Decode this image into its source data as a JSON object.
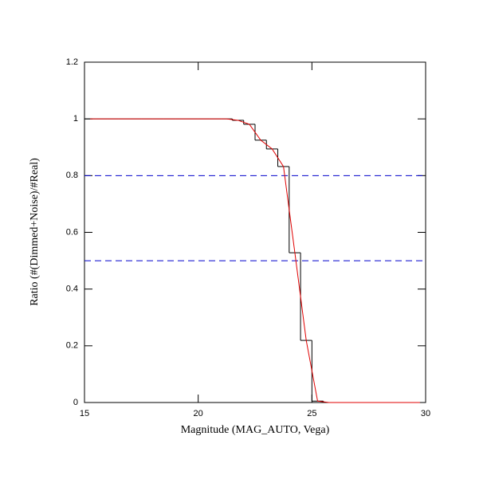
{
  "chart_data": {
    "type": "histogram",
    "xlabel": "Magnitude (MAG_AUTO, Vega)",
    "ylabel": "Ratio (#(Dimmed+Noise)/#Real)",
    "bins": [
      15,
      15.5,
      16,
      16.5,
      17,
      17.5,
      18,
      18.5,
      19,
      19.5,
      20,
      20.5,
      21,
      21.5,
      22,
      22.5,
      23,
      23.5,
      24,
      24.5,
      25,
      25.5,
      26,
      26.5,
      27,
      27.5,
      28,
      28.5,
      29,
      29.5,
      30
    ],
    "values": [
      1,
      1,
      1,
      1,
      1,
      1,
      1,
      1,
      1,
      1,
      1,
      1,
      1,
      0.995,
      0.981,
      0.925,
      0.894,
      0.832,
      0.528,
      0.219,
      0.005,
      0,
      0,
      0,
      0,
      0,
      0,
      0,
      0,
      0
    ],
    "color": "#000000",
    "line": {
      "color": "#e00000",
      "x": [
        15.25,
        15.75,
        16.25,
        16.75,
        17.25,
        17.75,
        18.25,
        18.75,
        19.25,
        19.75,
        20.25,
        20.75,
        21.25,
        21.75,
        22.25,
        22.75,
        23.25,
        23.75,
        24.25,
        24.75,
        25.25,
        25.75,
        26.25,
        26.75,
        27.25,
        27.75,
        28.25,
        28.75,
        29.25,
        29.75
      ],
      "values": [
        1,
        1,
        1,
        1,
        1,
        1,
        1,
        1,
        1,
        1,
        1,
        1,
        1,
        0.995,
        0.981,
        0.925,
        0.894,
        0.832,
        0.528,
        0.219,
        0.005,
        0,
        0,
        0,
        0,
        0,
        0,
        0,
        0,
        0
      ]
    },
    "hlines": [
      0.8,
      0.5
    ],
    "hline_color": "#0000cc",
    "xlim": [
      15,
      30
    ],
    "xticks": [
      15,
      20,
      25,
      30
    ],
    "ylim": [
      0,
      1.2
    ],
    "yticks": [
      0,
      0.2,
      0.4,
      0.6,
      0.8,
      1,
      1.2
    ]
  }
}
